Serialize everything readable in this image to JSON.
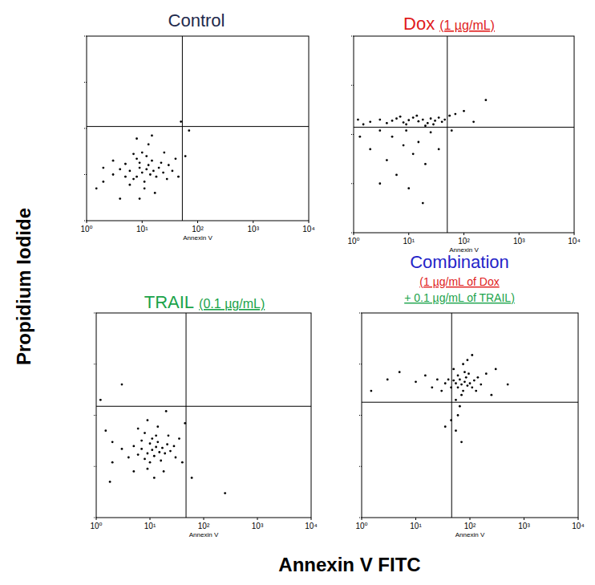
{
  "chart_data": [
    {
      "type": "scatter",
      "title": "Control",
      "xlabel": "Annexin V",
      "log": true,
      "tick_labels": "x",
      "marker": "dot",
      "color": "#000000",
      "xlim": [
        1,
        10000
      ],
      "ylim": [
        1,
        10000
      ],
      "xticks": [
        {
          "value": 1,
          "label": "10⁰"
        },
        {
          "value": 10,
          "label": "10¹"
        },
        {
          "value": 100,
          "label": "10²"
        },
        {
          "value": 1000,
          "label": "10³"
        },
        {
          "value": 10000,
          "label": "10⁴"
        }
      ],
      "yticks": [
        1,
        10,
        100,
        1000,
        10000
      ],
      "gate": {
        "x": 53,
        "y": 110
      },
      "x": [
        10,
        8,
        12,
        9,
        14,
        6,
        11,
        7,
        13,
        16,
        5,
        9,
        18,
        20,
        4,
        11,
        15,
        8,
        24,
        3,
        6,
        22,
        12,
        28,
        5,
        10,
        2,
        30,
        17,
        7,
        35,
        3,
        40,
        13,
        9,
        45,
        2,
        25,
        60,
        8,
        1.5,
        70,
        4,
        15,
        50
      ],
      "y": [
        11,
        9,
        13,
        14,
        10,
        12,
        7,
        8,
        16,
        12,
        9,
        18,
        9,
        14,
        13,
        5,
        20,
        22,
        11,
        10,
        6,
        18,
        25,
        8,
        17,
        30,
        7,
        16,
        4,
        28,
        12,
        20,
        22,
        45,
        3,
        9,
        14,
        30,
        25,
        60,
        5,
        90,
        3,
        70,
        140
      ]
    },
    {
      "type": "scatter",
      "title": "Dox",
      "subtitle": "(1 µg/mL)",
      "xlabel": "Annexin V",
      "log": true,
      "tick_labels": "x",
      "marker": "dot",
      "color": "#000000",
      "xlim": [
        1,
        10000
      ],
      "ylim": [
        1,
        10000
      ],
      "xticks": [
        {
          "value": 1,
          "label": "10⁰"
        },
        {
          "value": 10,
          "label": "10¹"
        },
        {
          "value": 100,
          "label": "10²"
        },
        {
          "value": 1000,
          "label": "10³"
        },
        {
          "value": 10000,
          "label": "10⁴"
        }
      ],
      "yticks": [
        1,
        10,
        100,
        1000,
        10000
      ],
      "gate": {
        "x": 50,
        "y": 140
      },
      "x": [
        2,
        3,
        4,
        5,
        6,
        8,
        10,
        12,
        15,
        18,
        22,
        25,
        30,
        35,
        40,
        1.5,
        1.2,
        7,
        9,
        14,
        20,
        28,
        45,
        55,
        70,
        100,
        3,
        5,
        8,
        12,
        4,
        6,
        10,
        15,
        20,
        2,
        3,
        25,
        35,
        18,
        9,
        60,
        150,
        250,
        1.3
      ],
      "y": [
        180,
        200,
        170,
        190,
        210,
        175,
        195,
        220,
        185,
        200,
        170,
        210,
        190,
        220,
        180,
        160,
        200,
        230,
        160,
        240,
        150,
        160,
        200,
        240,
        260,
        300,
        120,
        90,
        60,
        40,
        30,
        15,
        8,
        70,
        25,
        50,
        10,
        110,
        50,
        4,
        120,
        120,
        180,
        500,
        90
      ]
    },
    {
      "type": "scatter",
      "title": "TRAIL",
      "subtitle": "(0.1 µg/mL)",
      "xlabel": "Annexin V",
      "log": true,
      "tick_labels": "x",
      "marker": "dot",
      "color": "#000000",
      "xlim": [
        1,
        10000
      ],
      "ylim": [
        1,
        10000
      ],
      "xticks": [
        {
          "value": 1,
          "label": "10⁰"
        },
        {
          "value": 10,
          "label": "10¹"
        },
        {
          "value": 100,
          "label": "10²"
        },
        {
          "value": 1000,
          "label": "10³"
        },
        {
          "value": 10000,
          "label": "10⁴"
        }
      ],
      "yticks": [
        1,
        10,
        100,
        1000,
        10000
      ],
      "gate": {
        "x": 47,
        "y": 150
      },
      "x": [
        11,
        9,
        13,
        10,
        15,
        8,
        12,
        7,
        14,
        17,
        6,
        10,
        19,
        11,
        16,
        5,
        9,
        21,
        13,
        7,
        24,
        4,
        8,
        18,
        28,
        12,
        3,
        6,
        22,
        30,
        2,
        14,
        35,
        5,
        2,
        9,
        40,
        1.5,
        1.2,
        3,
        20,
        60,
        250,
        1.8,
        45
      ],
      "y": [
        21,
        18,
        24,
        28,
        19,
        14,
        16,
        22,
        30,
        23,
        17,
        12,
        18,
        35,
        13,
        25,
        9,
        27,
        40,
        32,
        20,
        15,
        45,
        8,
        25,
        6,
        22,
        55,
        40,
        15,
        30,
        60,
        35,
        8,
        12,
        80,
        12,
        50,
        200,
        400,
        120,
        6,
        3,
        5,
        70
      ]
    },
    {
      "type": "scatter",
      "title": "Combination",
      "subtitle": [
        "(1 µg/mL of Dox",
        "+ 0.1 µg/mL of TRAIL)"
      ],
      "xlabel": "Annexin V",
      "log": true,
      "tick_labels": "x",
      "marker": "dot",
      "color": "#000000",
      "xlim": [
        1,
        10000
      ],
      "ylim": [
        1,
        10000
      ],
      "xticks": [
        {
          "value": 1,
          "label": "10⁰"
        },
        {
          "value": 10,
          "label": "10¹"
        },
        {
          "value": 100,
          "label": "10²"
        },
        {
          "value": 1000,
          "label": "10³"
        },
        {
          "value": 10000,
          "label": "10⁴"
        }
      ],
      "yticks": [
        1,
        10,
        100,
        1000,
        10000
      ],
      "gate": {
        "x": 46,
        "y": 180
      },
      "x": [
        70,
        60,
        80,
        65,
        90,
        55,
        75,
        85,
        50,
        100,
        60,
        70,
        110,
        45,
        95,
        40,
        120,
        55,
        80,
        35,
        65,
        130,
        50,
        30,
        140,
        60,
        75,
        25,
        160,
        45,
        90,
        20,
        200,
        55,
        15,
        10,
        5,
        3,
        250,
        70,
        300,
        110,
        35,
        500,
        1.5
      ],
      "y": [
        400,
        350,
        450,
        500,
        380,
        420,
        300,
        550,
        480,
        420,
        600,
        250,
        350,
        350,
        650,
        500,
        480,
        200,
        700,
        420,
        150,
        300,
        800,
        300,
        550,
        100,
        1000,
        500,
        400,
        80,
        1200,
        350,
        650,
        50,
        600,
        450,
        700,
        500,
        250,
        30,
        800,
        1500,
        60,
        400,
        300
      ]
    }
  ],
  "figure_labels": {
    "xlabel": "Annexin V FITC",
    "ylabel": "Propidium Iodide"
  }
}
